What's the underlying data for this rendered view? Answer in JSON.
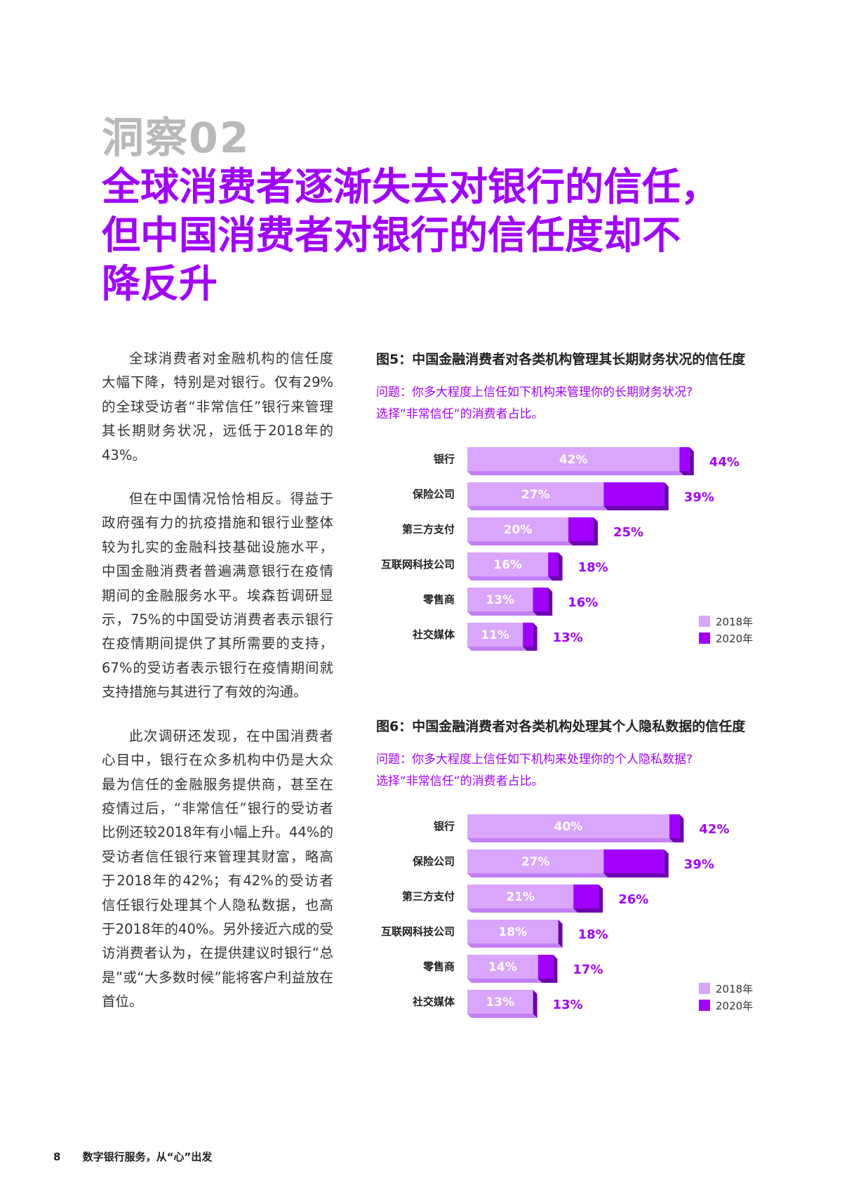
{
  "kicker": "洞察02",
  "headline": {
    "line1": "全球消费者逐渐失去对银行的信任，",
    "line2": "但中国消费者对银行的信任度却不",
    "line3": "降反升"
  },
  "body": {
    "p1": "全球消费者对金融机构的信任度大幅下降，特别是对银行。仅有29%的全球受访者“非常信任”银行来管理其长期财务状况，远低于2018年的43%。",
    "p2": "但在中国情况恰恰相反。得益于政府强有力的抗疫措施和银行业整体较为扎实的金融科技基础设施水平，中国金融消费者普遍满意银行在疫情期间的金融服务水平。埃森哲调研显示，75%的中国受访消费者表示银行在疫情期间提供了其所需要的支持，67%的受访者表示银行在疫情期间就支持措施与其进行了有效的沟通。",
    "p3": "此次调研还发现，在中国消费者心目中，银行在众多机构中仍是大众最为信任的金融服务提供商，甚至在疫情过后，“非常信任”银行的受访者比例还较2018年有小幅上升。44%的受访者信任银行来管理其财富，略高于2018年的42%；有42%的受访者信任银行处理其个人隐私数据，也高于2018年的40%。另外接近六成的受访消费者认为，在提供建议时银行“总是”或“大多数时候”能将客户利益放在首位。"
  },
  "colors": {
    "accent": "#a100ff",
    "light": "#d9a6fb",
    "light_side": "#c27ff5",
    "dark_side": "#6d00b0",
    "kicker_gray": "#b9b9b9"
  },
  "figures": [
    {
      "title": "图5：中国金融消费者对各类机构管理其长期财务状况的信任度",
      "question1": "问题：你多大程度上信任如下机构来管理你的长期财务状况?",
      "question2": "选择“非常信任“的消费者占比。"
    },
    {
      "title": "图6：中国金融消费者对各类机构处理其个人隐私数据的信任度",
      "question1": "问题：你多大程度上信任如下机构来处理你的个人隐私数据?",
      "question2": "选择“非常信任“的消费者占比。"
    }
  ],
  "chart_data": [
    {
      "type": "bar",
      "categories": [
        "银行",
        "保险公司",
        "第三方支付",
        "互联网科技公司",
        "零售商",
        "社交媒体"
      ],
      "series": [
        {
          "name": "2018年",
          "values": [
            42,
            27,
            20,
            16,
            13,
            11
          ],
          "labels": [
            "42%",
            "27%",
            "20%",
            "16%",
            "13%",
            "11%"
          ]
        },
        {
          "name": "2020年",
          "values": [
            44,
            39,
            25,
            18,
            16,
            13
          ],
          "labels": [
            "44%",
            "39%",
            "25%",
            "18%",
            "16%",
            "13%"
          ]
        }
      ],
      "legend": "bottom-right"
    },
    {
      "type": "bar",
      "categories": [
        "银行",
        "保险公司",
        "第三方支付",
        "互联网科技公司",
        "零售商",
        "社交媒体"
      ],
      "series": [
        {
          "name": "2018年",
          "values": [
            40,
            27,
            21,
            18,
            14,
            13
          ],
          "labels": [
            "40%",
            "27%",
            "21%",
            "18%",
            "14%",
            "13%"
          ]
        },
        {
          "name": "2020年",
          "values": [
            42,
            39,
            26,
            18,
            17,
            13
          ],
          "labels": [
            "42%",
            "39%",
            "26%",
            "18%",
            "17%",
            "13%"
          ]
        }
      ],
      "legend": "bottom-right"
    }
  ],
  "footer": {
    "page_number": "8",
    "title": "数字银行服务，从“心”出发"
  }
}
